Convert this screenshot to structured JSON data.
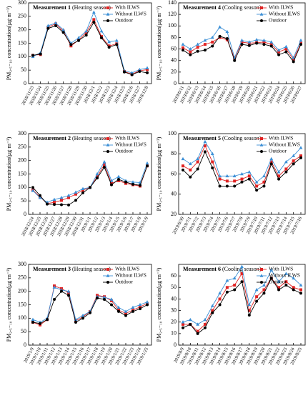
{
  "chart_data": [
    {
      "type": "line",
      "title": "Measurement 1",
      "subtitle": "(Heating season)",
      "y_label": "PM₂.₅₋₁₀ concentration(μg·m⁻³)",
      "categories": [
        "2018/11/23",
        "2018/11/24",
        "2018/11/25",
        "2018/11/26",
        "2018/11/27",
        "2018/11/28",
        "2018/11/29",
        "2018/11/30",
        "2018/12/1",
        "2018/12/2",
        "2018/12/3",
        "2018/12/4",
        "2018/12/5",
        "2018/12/6",
        "2018/12/7",
        "2018/12/8"
      ],
      "ylim": [
        0,
        300
      ],
      "yticks": [
        0,
        50,
        100,
        150,
        200,
        250,
        300
      ],
      "series": [
        {
          "name": "With ILWS",
          "color": "#e02424",
          "marker": "square",
          "values": [
            105,
            108,
            210,
            222,
            195,
            140,
            162,
            190,
            238,
            175,
            140,
            148,
            45,
            35,
            48,
            52
          ]
        },
        {
          "name": "Without ILWS",
          "color": "#3b8fd6",
          "marker": "triangle",
          "values": [
            100,
            115,
            215,
            225,
            200,
            150,
            170,
            195,
            265,
            195,
            155,
            160,
            48,
            40,
            52,
            58
          ]
        },
        {
          "name": "Outdoor",
          "color": "#000000",
          "marker": "circle",
          "values": [
            105,
            110,
            205,
            215,
            190,
            145,
            160,
            180,
            228,
            170,
            135,
            145,
            43,
            33,
            45,
            40
          ]
        }
      ]
    },
    {
      "type": "line",
      "title": "Measurement 4",
      "subtitle": "(Cooling season)",
      "y_label": "PM₂.₅₋₁₀ concentration(μg·m⁻³)",
      "categories": [
        "2019/6/11",
        "2019/6/12",
        "2019/6/13",
        "2019/6/14",
        "2019/6/15",
        "2019/6/16",
        "2019/6/17",
        "2019/6/18",
        "2019/6/19",
        "2019/6/20",
        "2019/6/21",
        "2019/6/22",
        "2019/6/23",
        "2019/6/24",
        "2019/6/25",
        "2019/6/26",
        "2019/6/27"
      ],
      "ylim": [
        0,
        140
      ],
      "yticks": [
        0,
        20,
        40,
        60,
        80,
        100,
        120,
        140
      ],
      "series": [
        {
          "name": "With ILWS",
          "color": "#e02424",
          "marker": "square",
          "values": [
            62,
            55,
            63,
            68,
            72,
            80,
            76,
            44,
            72,
            70,
            71,
            72,
            68,
            55,
            60,
            42,
            70
          ]
        },
        {
          "name": "Without ILWS",
          "color": "#3b8fd6",
          "marker": "triangle",
          "values": [
            68,
            60,
            68,
            75,
            80,
            98,
            90,
            45,
            75,
            72,
            76,
            75,
            72,
            58,
            64,
            45,
            75
          ]
        },
        {
          "name": "Outdoor",
          "color": "#000000",
          "marker": "circle",
          "values": [
            58,
            50,
            56,
            58,
            65,
            82,
            78,
            40,
            68,
            66,
            70,
            68,
            65,
            50,
            55,
            38,
            68
          ]
        }
      ]
    },
    {
      "type": "line",
      "title": "Measurement 2",
      "subtitle": "(Heating season)",
      "y_label": "PM₂.₅₋₁₀ concentration(μg·m⁻³)",
      "categories": [
        "2018/12/24",
        "2018/12/25",
        "2018/12/26",
        "2018/12/27",
        "2018/12/28",
        "2018/12/29",
        "2018/12/30",
        "2018/12/31",
        "2019/1/1",
        "2019/1/2",
        "2019/1/3",
        "2019/1/4",
        "2019/1/5",
        "2019/1/6",
        "2019/1/7",
        "2019/1/8",
        "2019/1/9"
      ],
      "ylim": [
        0,
        300
      ],
      "yticks": [
        0,
        50,
        100,
        150,
        200,
        250,
        300
      ],
      "series": [
        {
          "name": "With ILWS",
          "color": "#e02424",
          "marker": "square",
          "values": [
            90,
            65,
            40,
            45,
            52,
            62,
            75,
            90,
            100,
            140,
            185,
            115,
            125,
            115,
            110,
            105,
            180
          ]
        },
        {
          "name": "Without ILWS",
          "color": "#3b8fd6",
          "marker": "triangle",
          "values": [
            88,
            62,
            45,
            55,
            62,
            70,
            82,
            95,
            100,
            150,
            195,
            125,
            140,
            125,
            120,
            118,
            190
          ]
        },
        {
          "name": "Outdoor",
          "color": "#000000",
          "marker": "circle",
          "values": [
            100,
            70,
            38,
            37,
            36,
            35,
            52,
            80,
            100,
            135,
            175,
            110,
            130,
            120,
            112,
            108,
            180
          ]
        }
      ]
    },
    {
      "type": "line",
      "title": "Measurement 5",
      "subtitle": "(Cooling season)",
      "y_label": "PM₂.₅₋₁₀ concentration(μg·m⁻³)",
      "categories": [
        "2019/6/30",
        "2019/7/1",
        "2019/7/2",
        "2019/7/3",
        "2019/7/4",
        "2019/7/5",
        "2019/7/6",
        "2019/7/7",
        "2019/7/8",
        "2019/7/9",
        "2019/7/10",
        "2019/7/11",
        "2019/7/12",
        "2019/7/13",
        "2019/7/14",
        "2019/7/15",
        "2019/7/16"
      ],
      "ylim": [
        20,
        100
      ],
      "yticks": [
        20,
        40,
        60,
        80,
        100
      ],
      "series": [
        {
          "name": "With ILWS",
          "color": "#e02424",
          "marker": "square",
          "values": [
            68,
            64,
            72,
            88,
            72,
            55,
            53,
            53,
            55,
            58,
            48,
            52,
            72,
            58,
            65,
            73,
            78
          ]
        },
        {
          "name": "Without ILWS",
          "color": "#3b8fd6",
          "marker": "triangle",
          "values": [
            75,
            70,
            75,
            92,
            80,
            58,
            58,
            58,
            60,
            62,
            52,
            58,
            75,
            62,
            72,
            78,
            86
          ]
        },
        {
          "name": "Outdoor",
          "color": "#000000",
          "marker": "circle",
          "values": [
            64,
            57,
            65,
            82,
            66,
            48,
            48,
            48,
            52,
            55,
            44,
            48,
            70,
            55,
            62,
            70,
            76
          ]
        }
      ]
    },
    {
      "type": "line",
      "title": "Measurement 3",
      "subtitle": "(Heating season)",
      "y_label": "PM₂.₅₋₁₀ concentration(μg·m⁻³)",
      "categories": [
        "2019/1/9",
        "2019/1/10",
        "2019/1/11",
        "2019/1/12",
        "2019/1/13",
        "2019/1/14",
        "2019/1/15",
        "2019/1/16",
        "2019/1/17",
        "2019/1/18",
        "2019/1/19",
        "2019/1/20",
        "2019/1/21",
        "2019/1/22",
        "2019/1/23",
        "2019/1/24",
        "2019/1/25"
      ],
      "ylim": [
        0,
        300
      ],
      "yticks": [
        0,
        50,
        100,
        150,
        200,
        250,
        300
      ],
      "series": [
        {
          "name": "With ILWS",
          "color": "#e02424",
          "marker": "square",
          "values": [
            85,
            75,
            95,
            220,
            210,
            195,
            90,
            105,
            125,
            185,
            180,
            165,
            130,
            118,
            130,
            142,
            155
          ]
        },
        {
          "name": "Without ILWS",
          "color": "#3b8fd6",
          "marker": "triangle",
          "values": [
            95,
            85,
            100,
            215,
            205,
            200,
            95,
            110,
            125,
            180,
            178,
            170,
            140,
            125,
            140,
            150,
            160
          ]
        },
        {
          "name": "Outdoor",
          "color": "#000000",
          "marker": "circle",
          "values": [
            85,
            80,
            95,
            170,
            200,
            185,
            85,
            100,
            120,
            175,
            170,
            150,
            125,
            110,
            125,
            135,
            150
          ]
        }
      ]
    },
    {
      "type": "line",
      "title": "Measurement 6",
      "subtitle": "(Cooling season)",
      "y_label": "PM₂.₅₋₁₀ concentration(μg·m⁻³)",
      "categories": [
        "2019/8/9",
        "2019/8/10",
        "2019/8/11",
        "2019/8/12",
        "2019/8/13",
        "2019/8/14",
        "2019/8/15",
        "2019/8/16",
        "2019/8/17",
        "2019/8/18",
        "2019/8/19",
        "2019/8/20",
        "2019/8/21",
        "2019/8/22",
        "2019/8/23",
        "2019/8/24",
        "2019/8/25"
      ],
      "ylim": [
        0,
        70
      ],
      "yticks": [
        0,
        10,
        20,
        30,
        40,
        50,
        60
      ],
      "series": [
        {
          "name": "With ILWS",
          "color": "#e02424",
          "marker": "square",
          "values": [
            18,
            18,
            12,
            18,
            30,
            40,
            50,
            52,
            62,
            30,
            42,
            48,
            58,
            50,
            55,
            50,
            48
          ]
        },
        {
          "name": "Without ILWS",
          "color": "#3b8fd6",
          "marker": "triangle",
          "values": [
            20,
            22,
            18,
            22,
            34,
            45,
            56,
            58,
            68,
            35,
            48,
            52,
            65,
            55,
            62,
            58,
            52
          ]
        },
        {
          "name": "Outdoor",
          "color": "#000000",
          "marker": "circle",
          "values": [
            15,
            18,
            10,
            15,
            28,
            35,
            46,
            48,
            55,
            26,
            38,
            45,
            58,
            48,
            52,
            48,
            45
          ]
        }
      ]
    }
  ]
}
